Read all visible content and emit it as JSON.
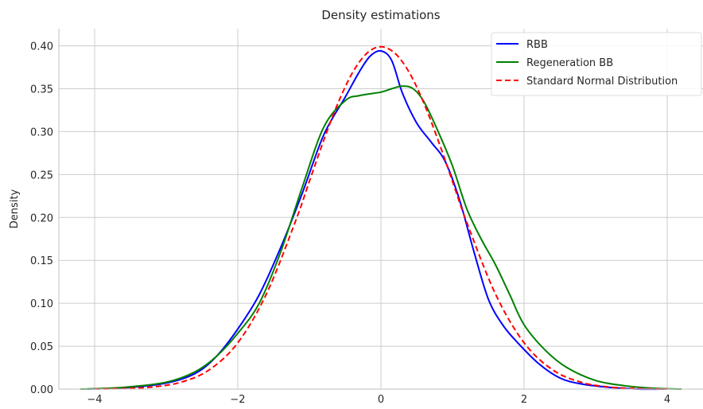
{
  "chart_data": {
    "type": "line",
    "title": "Density estimations",
    "xlabel": "",
    "ylabel": "Density",
    "xlim": [
      -4.5,
      4.5
    ],
    "ylim": [
      0.0,
      0.42
    ],
    "xticks": [
      {
        "value": -4,
        "label": "−4"
      },
      {
        "value": -2,
        "label": "−2"
      },
      {
        "value": 0,
        "label": "0"
      },
      {
        "value": 2,
        "label": "2"
      },
      {
        "value": 4,
        "label": "4"
      }
    ],
    "yticks": [
      {
        "value": 0.0,
        "label": "0.00"
      },
      {
        "value": 0.05,
        "label": "0.05"
      },
      {
        "value": 0.1,
        "label": "0.10"
      },
      {
        "value": 0.15,
        "label": "0.15"
      },
      {
        "value": 0.2,
        "label": "0.20"
      },
      {
        "value": 0.25,
        "label": "0.25"
      },
      {
        "value": 0.3,
        "label": "0.30"
      },
      {
        "value": 0.35,
        "label": "0.35"
      },
      {
        "value": 0.4,
        "label": "0.40"
      }
    ],
    "grid": true,
    "legend_position": "top-right",
    "series": [
      {
        "name": "RBB",
        "color": "#0000ff",
        "style": "solid",
        "x": [
          -4.1,
          -3.5,
          -3.0,
          -2.6,
          -2.3,
          -2.0,
          -1.7,
          -1.4,
          -1.1,
          -0.8,
          -0.5,
          -0.3,
          -0.15,
          0.0,
          0.15,
          0.3,
          0.5,
          0.7,
          0.9,
          1.1,
          1.3,
          1.5,
          1.7,
          1.9,
          2.2,
          2.5,
          2.8,
          3.2,
          3.6,
          4.0
        ],
        "y": [
          0.0,
          0.002,
          0.007,
          0.018,
          0.038,
          0.07,
          0.11,
          0.165,
          0.228,
          0.296,
          0.34,
          0.37,
          0.388,
          0.394,
          0.383,
          0.345,
          0.31,
          0.288,
          0.265,
          0.22,
          0.16,
          0.105,
          0.075,
          0.055,
          0.03,
          0.013,
          0.006,
          0.002,
          0.0,
          0.0
        ]
      },
      {
        "name": "Regeneration BB",
        "color": "#008000",
        "style": "solid",
        "x": [
          -4.2,
          -3.6,
          -3.0,
          -2.6,
          -2.3,
          -2.0,
          -1.7,
          -1.4,
          -1.1,
          -0.8,
          -0.5,
          -0.3,
          0.0,
          0.15,
          0.3,
          0.45,
          0.6,
          0.8,
          1.0,
          1.2,
          1.4,
          1.6,
          1.8,
          2.0,
          2.3,
          2.6,
          3.0,
          3.4,
          3.8,
          4.2
        ],
        "y": [
          0.0,
          0.002,
          0.008,
          0.02,
          0.038,
          0.065,
          0.1,
          0.16,
          0.235,
          0.305,
          0.336,
          0.342,
          0.346,
          0.35,
          0.353,
          0.35,
          0.335,
          0.3,
          0.26,
          0.21,
          0.175,
          0.145,
          0.11,
          0.075,
          0.045,
          0.025,
          0.01,
          0.004,
          0.001,
          0.0
        ]
      },
      {
        "name": "Standard Normal Distribution",
        "color": "#ff0000",
        "style": "dashed",
        "x": [
          -4.0,
          -3.6,
          -3.2,
          -2.8,
          -2.4,
          -2.0,
          -1.6,
          -1.2,
          -1.0,
          -0.8,
          -0.6,
          -0.4,
          -0.2,
          0.0,
          0.2,
          0.4,
          0.6,
          0.8,
          1.0,
          1.2,
          1.6,
          2.0,
          2.4,
          2.8,
          3.2,
          3.6,
          4.0
        ],
        "y": [
          0.0001,
          0.0006,
          0.0024,
          0.0079,
          0.0224,
          0.054,
          0.1109,
          0.1942,
          0.242,
          0.2897,
          0.3332,
          0.3683,
          0.391,
          0.3989,
          0.391,
          0.3683,
          0.3332,
          0.2897,
          0.242,
          0.1942,
          0.1109,
          0.054,
          0.0224,
          0.0079,
          0.0024,
          0.0006,
          0.0001
        ]
      }
    ]
  }
}
